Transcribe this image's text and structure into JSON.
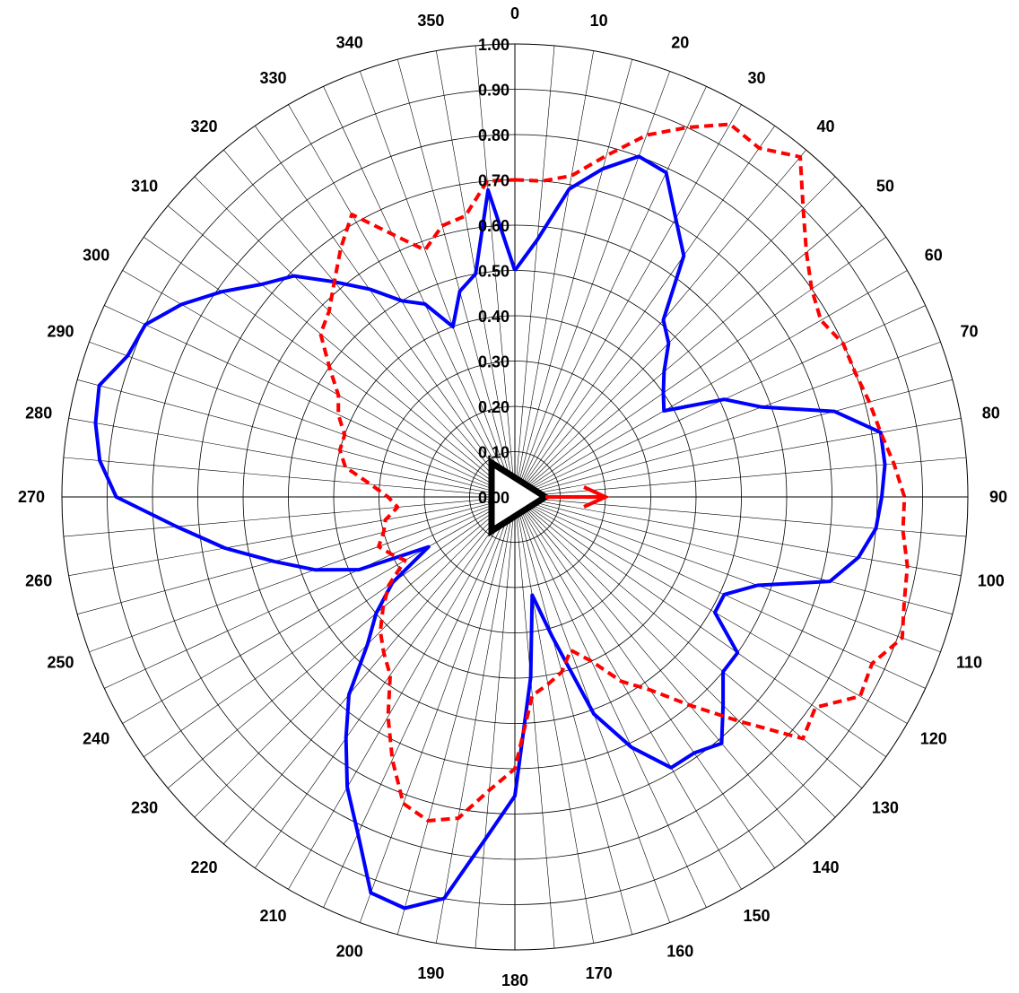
{
  "chart_data": {
    "type": "polar-line",
    "title": "",
    "radial_axis": {
      "range": [
        0,
        1
      ],
      "ticks": [
        "0.00",
        "0.10",
        "0.20",
        "0.30",
        "0.40",
        "0.50",
        "0.60",
        "0.70",
        "0.80",
        "0.90",
        "1.00"
      ]
    },
    "angular_axis": {
      "direction": "clockwise",
      "zero": "top",
      "minor_step_deg": 5,
      "ticks": [
        "0",
        "10",
        "20",
        "30",
        "40",
        "50",
        "60",
        "70",
        "80",
        "90",
        "100",
        "110",
        "120",
        "130",
        "140",
        "150",
        "160",
        "170",
        "180",
        "190",
        "200",
        "210",
        "220",
        "230",
        "240",
        "250",
        "260",
        "270",
        "280",
        "290",
        "300",
        "310",
        "320",
        "330",
        "340",
        "350"
      ]
    },
    "grid": true,
    "legend": "none",
    "series": [
      {
        "color": "#0000ff",
        "style": "solid",
        "theta": [
          0,
          5,
          10,
          15,
          20,
          25,
          30,
          35,
          40,
          45,
          50,
          55,
          60,
          65,
          70,
          75,
          80,
          85,
          90,
          95,
          100,
          105,
          110,
          115,
          120,
          125,
          130,
          135,
          140,
          145,
          150,
          155,
          160,
          165,
          170,
          175,
          180,
          185,
          190,
          195,
          200,
          205,
          210,
          215,
          220,
          225,
          230,
          235,
          240,
          245,
          250,
          255,
          260,
          265,
          270,
          275,
          280,
          285,
          290,
          295,
          300,
          305,
          310,
          315,
          320,
          325,
          330,
          335,
          340,
          345,
          350,
          355,
          360
        ],
        "r": [
          0.5,
          0.57,
          0.69,
          0.75,
          0.8,
          0.79,
          0.71,
          0.65,
          0.51,
          0.48,
          0.43,
          0.4,
          0.38,
          0.51,
          0.58,
          0.73,
          0.82,
          0.82,
          0.81,
          0.8,
          0.77,
          0.72,
          0.57,
          0.51,
          0.51,
          0.6,
          0.6,
          0.65,
          0.71,
          0.69,
          0.69,
          0.61,
          0.51,
          0.32,
          0.22,
          0.4,
          0.66,
          0.76,
          0.9,
          0.94,
          0.93,
          0.82,
          0.74,
          0.65,
          0.57,
          0.46,
          0.4,
          0.33,
          0.22,
          0.38,
          0.47,
          0.55,
          0.65,
          0.75,
          0.88,
          0.92,
          0.94,
          0.95,
          0.91,
          0.9,
          0.85,
          0.79,
          0.73,
          0.69,
          0.62,
          0.56,
          0.5,
          0.47,
          0.4,
          0.47,
          0.5,
          0.68,
          0.5
        ]
      },
      {
        "color": "#ff0000",
        "style": "dashed",
        "theta": [
          0,
          5,
          10,
          15,
          20,
          25,
          30,
          35,
          40,
          45,
          50,
          55,
          60,
          65,
          70,
          75,
          80,
          85,
          90,
          95,
          100,
          105,
          110,
          115,
          120,
          125,
          130,
          135,
          140,
          145,
          150,
          155,
          160,
          165,
          170,
          175,
          180,
          185,
          190,
          195,
          200,
          205,
          210,
          215,
          220,
          225,
          230,
          235,
          240,
          245,
          250,
          255,
          260,
          265,
          270,
          275,
          280,
          285,
          290,
          295,
          300,
          305,
          310,
          315,
          320,
          325,
          330,
          335,
          340,
          345,
          350,
          355,
          360
        ],
        "r": [
          0.7,
          0.7,
          0.72,
          0.78,
          0.85,
          0.9,
          0.95,
          0.94,
          0.98,
          0.9,
          0.84,
          0.8,
          0.78,
          0.8,
          0.8,
          0.81,
          0.82,
          0.84,
          0.86,
          0.86,
          0.88,
          0.89,
          0.91,
          0.87,
          0.88,
          0.81,
          0.83,
          0.7,
          0.6,
          0.52,
          0.47,
          0.4,
          0.36,
          0.4,
          0.42,
          0.44,
          0.6,
          0.65,
          0.72,
          0.74,
          0.72,
          0.64,
          0.56,
          0.48,
          0.45,
          0.42,
          0.38,
          0.34,
          0.28,
          0.3,
          0.32,
          0.3,
          0.29,
          0.26,
          0.28,
          0.32,
          0.38,
          0.4,
          0.4,
          0.43,
          0.45,
          0.5,
          0.56,
          0.58,
          0.62,
          0.67,
          0.72,
          0.64,
          0.58,
          0.62,
          0.63,
          0.7,
          0.7
        ]
      }
    ],
    "center_marker": {
      "shape": "triangle",
      "color": "#000000",
      "points": "right"
    },
    "direction_arrow": {
      "color": "#ff0000",
      "angle_deg": 90,
      "length_r": 0.2
    }
  }
}
